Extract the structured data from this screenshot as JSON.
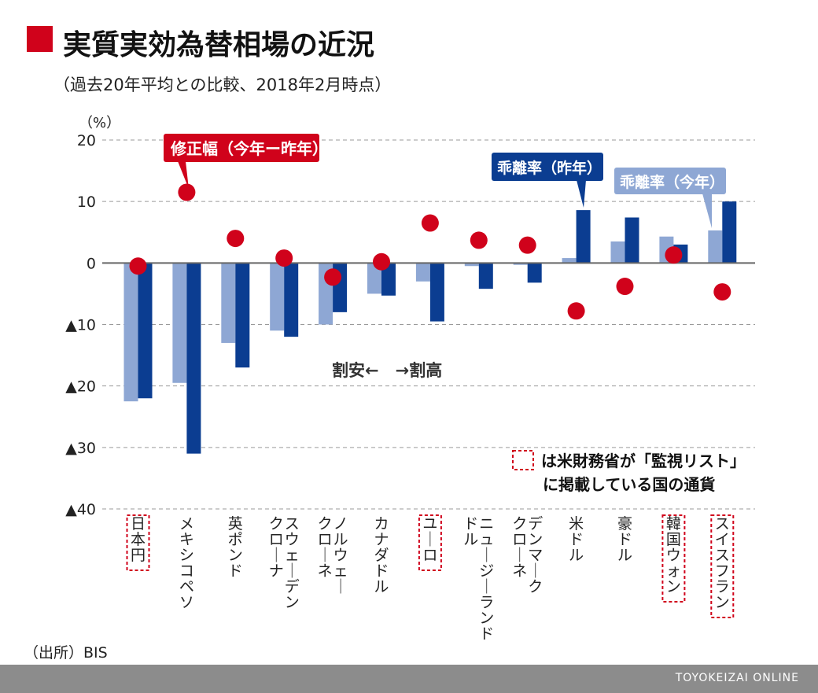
{
  "source": "（出所）BIS",
  "publisher": "TOYOKEIZAI ONLINE",
  "colors": {
    "bar_this_year": "#8ea7d4",
    "bar_last_year": "#0b3d91",
    "dot": "#d0021b",
    "watch_box": "#d0021b"
  },
  "chart_data": {
    "type": "bar",
    "title": "実質実効為替相場の近況",
    "subtitle": "（過去20年平均との比較、2018年2月時点）",
    "ylabel": "（%）",
    "ylim": [
      -40,
      20
    ],
    "yticks": [
      20,
      10,
      0,
      -10,
      -20,
      -30,
      -40
    ],
    "ytick_labels": [
      "20",
      "10",
      "0",
      "▲10",
      "▲20",
      "▲30",
      "▲40"
    ],
    "grid": true,
    "categories": [
      "日本円",
      "メキシコペソ",
      "英ポンド",
      "スウェーデンクローナ",
      "ノルウェークローネ",
      "カナダドル",
      "ユーロ",
      "ニュージーランドドル",
      "デンマーククローネ",
      "米ドル",
      "豪ドル",
      "韓国ウォン",
      "スイスフラン"
    ],
    "watch_list": [
      true,
      false,
      false,
      false,
      false,
      false,
      true,
      false,
      false,
      false,
      false,
      true,
      true
    ],
    "series": [
      {
        "name": "乖離率（今年）",
        "kind": "bar",
        "values": [
          -22.5,
          -19.5,
          -13,
          -11,
          -10,
          -5,
          -3,
          -0.5,
          -0.3,
          0.8,
          3.5,
          4.3,
          5.3
        ]
      },
      {
        "name": "乖離率（昨年）",
        "kind": "bar",
        "values": [
          -22,
          -31,
          -17,
          -12,
          -8,
          -5.3,
          -9.5,
          -4.2,
          -3.2,
          8.6,
          7.4,
          3,
          10
        ]
      },
      {
        "name": "修正幅（今年ー昨年）",
        "kind": "dot",
        "values": [
          -0.5,
          11.5,
          4,
          0.8,
          -2.3,
          0.2,
          6.5,
          3.7,
          2.9,
          -7.8,
          -3.8,
          1.3,
          -4.7
        ]
      }
    ],
    "annotations": {
      "direction": "割安←　→割高",
      "watch_note_line1": "は米財務省が「監視リスト」",
      "watch_note_line2": "に掲載している国の通貨"
    }
  }
}
